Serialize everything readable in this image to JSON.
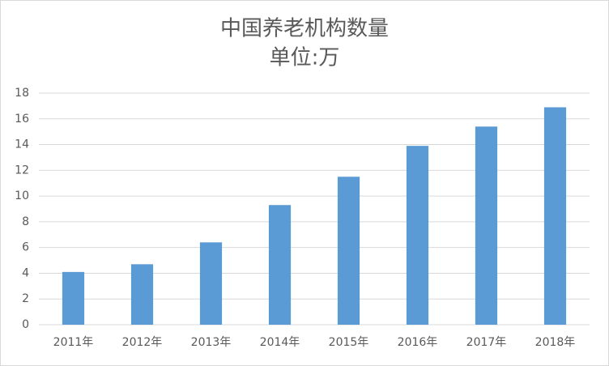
{
  "chart_data": {
    "type": "bar",
    "title": "中国养老机构数量",
    "subtitle": "单位:万",
    "categories": [
      "2011年",
      "2012年",
      "2013年",
      "2014年",
      "2015年",
      "2016年",
      "2017年",
      "2018年"
    ],
    "values": [
      4.1,
      4.7,
      6.4,
      9.3,
      11.5,
      13.9,
      15.4,
      16.9
    ],
    "color": "#5b9bd5",
    "ylim": [
      0,
      18
    ],
    "yticks": [
      0,
      2,
      4,
      6,
      8,
      10,
      12,
      14,
      16,
      18
    ],
    "grid": true
  }
}
